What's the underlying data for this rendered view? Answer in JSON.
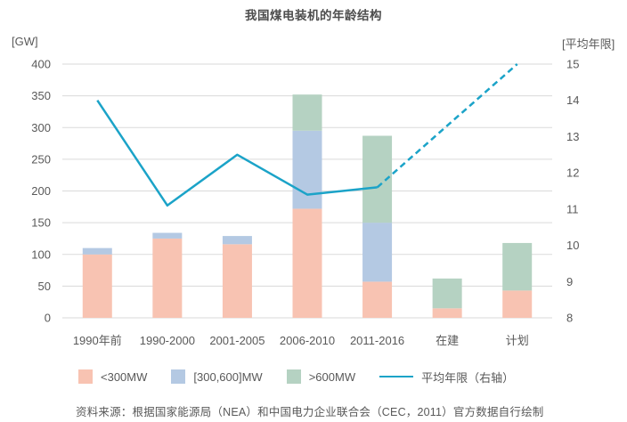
{
  "page": {
    "title": "我国煤电装机的年龄结构",
    "source_note": "资料来源：根据国家能源局（NEA）和中国电力企业联合会（CEC，2011）官方数据自行绘制"
  },
  "axes": {
    "left_header": "[GW]",
    "right_header": "[平均年限]"
  },
  "colors": {
    "bar_under300": "#F8C3B2",
    "bar_300_600": "#B4C9E3",
    "bar_over600": "#B5D2C2",
    "avg_line": "#1BA3C8",
    "grid": "#DADADA",
    "tick_text": "#595959",
    "title_text": "#4D4D4D"
  },
  "chart_data": {
    "type": "bar",
    "subtype": "stacked-bars-with-secondary-axis-line",
    "title": "我国煤电装机的年龄结构",
    "categories": [
      "1990年前",
      "1990-2000",
      "2001-2005",
      "2006-2010",
      "2011-2016",
      "在建",
      "计划"
    ],
    "series": [
      {
        "name": "<300MW",
        "type": "bar",
        "color": "#F8C3B2",
        "values": [
          100,
          125,
          116,
          172,
          57,
          15,
          43
        ]
      },
      {
        "name": "[300,600]MW",
        "type": "bar",
        "color": "#B4C9E3",
        "values": [
          10,
          9,
          13,
          123,
          93,
          0,
          0
        ]
      },
      {
        "name": ">600MW",
        "type": "bar",
        "color": "#B5D2C2",
        "values": [
          0,
          0,
          0,
          57,
          137,
          47,
          75
        ]
      },
      {
        "name": "平均年限（右轴）",
        "type": "line",
        "axis": "right",
        "color": "#1BA3C8",
        "values": [
          14.0,
          11.1,
          12.5,
          11.4,
          11.6,
          13.3,
          15.0
        ],
        "solid_until_index": 4,
        "note_dashed_projection": "从2011-2016起为虚线（预测）至计划达15"
      }
    ],
    "stacked": true,
    "grid": true,
    "legend_position": "bottom",
    "left_axis": {
      "label": "[GW]",
      "min": 0,
      "max": 400,
      "step": 50
    },
    "right_axis": {
      "label": "[平均年限]",
      "min": 8,
      "max": 15,
      "step": 1
    },
    "bar_totals": [
      110,
      134,
      129,
      352,
      287,
      62,
      118
    ]
  }
}
